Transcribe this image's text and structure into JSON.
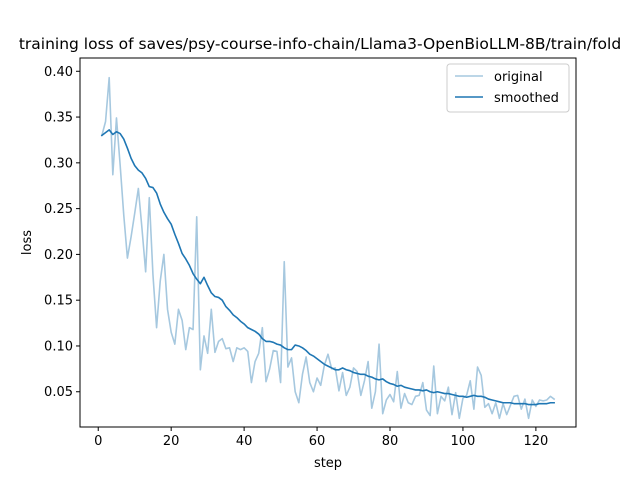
{
  "chart_data": {
    "type": "line",
    "title": "training loss of saves/psy-course-info-chain/Llama3-OpenBioLLM-8B/train/fold",
    "xlabel": "step",
    "ylabel": "loss",
    "xlim": [
      -5,
      131
    ],
    "ylim": [
      0.0115,
      0.4145
    ],
    "xticks": [
      0,
      20,
      40,
      60,
      80,
      100,
      120
    ],
    "yticks": [
      0.05,
      0.1,
      0.15,
      0.2,
      0.25,
      0.3,
      0.35,
      0.4
    ],
    "ytick_labels": [
      "0.05",
      "0.10",
      "0.15",
      "0.20",
      "0.25",
      "0.30",
      "0.35",
      "0.40"
    ],
    "legend_position": "top-right",
    "x": [
      1,
      2,
      3,
      4,
      5,
      6,
      7,
      8,
      9,
      10,
      11,
      12,
      13,
      14,
      15,
      16,
      17,
      18,
      19,
      20,
      21,
      22,
      23,
      24,
      25,
      26,
      27,
      28,
      29,
      30,
      31,
      32,
      33,
      34,
      35,
      36,
      37,
      38,
      39,
      40,
      41,
      42,
      43,
      44,
      45,
      46,
      47,
      48,
      49,
      50,
      51,
      52,
      53,
      54,
      55,
      56,
      57,
      58,
      59,
      60,
      61,
      62,
      63,
      64,
      65,
      66,
      67,
      68,
      69,
      70,
      71,
      72,
      73,
      74,
      75,
      76,
      77,
      78,
      79,
      80,
      81,
      82,
      83,
      84,
      85,
      86,
      87,
      88,
      89,
      90,
      91,
      92,
      93,
      94,
      95,
      96,
      97,
      98,
      99,
      100,
      101,
      102,
      103,
      104,
      105,
      106,
      107,
      108,
      109,
      110,
      111,
      112,
      113,
      114,
      115,
      116,
      117,
      118,
      119,
      120,
      121,
      122,
      123,
      124,
      125
    ],
    "series": [
      {
        "name": "original",
        "color": "#a6c8df",
        "values": [
          0.33,
          0.345,
          0.393,
          0.287,
          0.349,
          0.298,
          0.243,
          0.196,
          0.219,
          0.245,
          0.272,
          0.228,
          0.181,
          0.262,
          0.178,
          0.12,
          0.171,
          0.2,
          0.14,
          0.115,
          0.102,
          0.14,
          0.128,
          0.096,
          0.12,
          0.118,
          0.241,
          0.074,
          0.111,
          0.092,
          0.14,
          0.093,
          0.105,
          0.108,
          0.097,
          0.098,
          0.083,
          0.098,
          0.096,
          0.098,
          0.094,
          0.06,
          0.083,
          0.092,
          0.12,
          0.061,
          0.075,
          0.095,
          0.094,
          0.06,
          0.192,
          0.077,
          0.087,
          0.05,
          0.038,
          0.069,
          0.088,
          0.06,
          0.05,
          0.065,
          0.057,
          0.079,
          0.091,
          0.075,
          0.076,
          0.051,
          0.071,
          0.046,
          0.055,
          0.076,
          0.072,
          0.046,
          0.062,
          0.083,
          0.032,
          0.05,
          0.102,
          0.026,
          0.041,
          0.047,
          0.039,
          0.072,
          0.032,
          0.048,
          0.038,
          0.036,
          0.045,
          0.046,
          0.06,
          0.03,
          0.024,
          0.078,
          0.026,
          0.045,
          0.04,
          0.055,
          0.025,
          0.049,
          0.021,
          0.043,
          0.046,
          0.062,
          0.031,
          0.077,
          0.068,
          0.033,
          0.037,
          0.026,
          0.038,
          0.021,
          0.037,
          0.025,
          0.035,
          0.045,
          0.046,
          0.031,
          0.042,
          0.021,
          0.041,
          0.034,
          0.041,
          0.04,
          0.041,
          0.045,
          0.042
        ]
      },
      {
        "name": "smoothed",
        "color": "#1f77b4",
        "values": [
          0.33,
          0.333,
          0.336,
          0.331,
          0.334,
          0.332,
          0.326,
          0.316,
          0.305,
          0.297,
          0.292,
          0.289,
          0.283,
          0.274,
          0.273,
          0.267,
          0.255,
          0.246,
          0.239,
          0.233,
          0.222,
          0.212,
          0.201,
          0.195,
          0.188,
          0.179,
          0.173,
          0.168,
          0.175,
          0.166,
          0.158,
          0.154,
          0.153,
          0.15,
          0.143,
          0.139,
          0.134,
          0.131,
          0.127,
          0.124,
          0.12,
          0.118,
          0.116,
          0.113,
          0.108,
          0.105,
          0.105,
          0.104,
          0.102,
          0.101,
          0.098,
          0.096,
          0.096,
          0.101,
          0.1,
          0.098,
          0.095,
          0.091,
          0.089,
          0.086,
          0.083,
          0.08,
          0.078,
          0.076,
          0.074,
          0.074,
          0.076,
          0.074,
          0.073,
          0.071,
          0.07,
          0.069,
          0.069,
          0.067,
          0.066,
          0.064,
          0.063,
          0.064,
          0.061,
          0.059,
          0.058,
          0.056,
          0.057,
          0.055,
          0.054,
          0.053,
          0.052,
          0.052,
          0.051,
          0.052,
          0.05,
          0.049,
          0.05,
          0.049,
          0.048,
          0.048,
          0.047,
          0.046,
          0.045,
          0.045,
          0.044,
          0.045,
          0.046,
          0.045,
          0.045,
          0.044,
          0.042,
          0.041,
          0.04,
          0.039,
          0.038,
          0.038,
          0.038,
          0.037,
          0.037,
          0.037,
          0.037,
          0.036,
          0.036,
          0.036,
          0.037,
          0.037,
          0.037,
          0.038,
          0.038
        ]
      }
    ]
  }
}
